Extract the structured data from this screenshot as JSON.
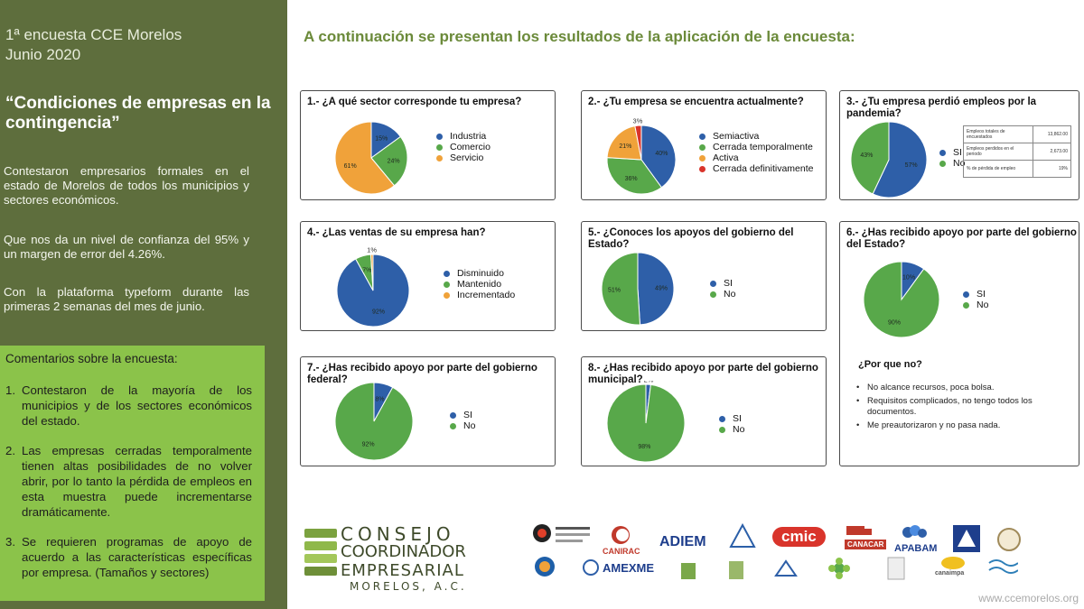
{
  "left": {
    "head_line1": "1ª encuesta CCE Morelos",
    "head_line2": "Junio 2020",
    "title": "“Condiciones de empresas en la contingencia”",
    "p1": "Contestaron empresarios formales en el estado de Morelos de todos los municipios y sectores económicos.",
    "p2": "Que nos da un nivel de confianza del 95% y un margen de error del 4.26%.",
    "p3": "Con la plataforma typeform durante las primeras 2 semanas del mes de junio.",
    "comments_title": "Comentarios sobre la encuesta:",
    "comments": [
      {
        "num": "1.",
        "text": "Contestaron de la mayoría de los municipios y de los sectores económicos del estado."
      },
      {
        "num": "2.",
        "text": "Las empresas cerradas temporalmente tienen altas posibilidades de no volver abrir, por lo tanto la pérdida de empleos en esta muestra puede incrementarse dramáticamente."
      },
      {
        "num": "3.",
        "text": "Se requieren programas de apoyo de acuerdo a las características específicas por empresa. (Tamaños y sectores)"
      }
    ]
  },
  "main_title": "A continuación se presentan los resultados de la aplicación de la encuesta:",
  "colors": {
    "panel": "#5e6e3d",
    "comments_bg": "#8bc34a",
    "title_green": "#6b8a3a",
    "blue": "#2e5fa8",
    "green": "#58a84a",
    "orange": "#f0a23a",
    "red": "#d9342b"
  },
  "chart_data": [
    {
      "id": "q1",
      "type": "pie",
      "title": "1.- ¿A qué sector corresponde tu empresa?",
      "labels": [
        "Industria",
        "Comercio",
        "Servicio"
      ],
      "values": [
        15,
        24,
        61
      ],
      "value_labels": [
        "15%",
        "24%",
        "61%"
      ]
    },
    {
      "id": "q2",
      "type": "pie",
      "title": "2.- ¿Tu empresa se encuentra actualmente?",
      "labels": [
        "Semiactiva",
        "Cerrada temporalmente",
        "Activa",
        "Cerrada definitivamente"
      ],
      "values": [
        40,
        36,
        21,
        3
      ],
      "value_labels": [
        "40%",
        "36%",
        "21%",
        "3%"
      ]
    },
    {
      "id": "q3",
      "type": "pie",
      "title": "3.- ¿Tu empresa perdió empleos por la pandemia?",
      "labels": [
        "SI",
        "No"
      ],
      "values": [
        57,
        43
      ],
      "value_labels": [
        "57%",
        "43%"
      ],
      "table": [
        {
          "label": "Empleos totales de encuestados",
          "value": "13,862.00"
        },
        {
          "label": "Empleos perdidos en el periodo",
          "value": "2,673.00"
        },
        {
          "label": "% de pérdida de empleo",
          "value": "19%"
        }
      ]
    },
    {
      "id": "q4",
      "type": "pie",
      "title": "4.- ¿Las ventas de su empresa han?",
      "labels": [
        "Disminuido",
        "Mantenido",
        "Incrementado"
      ],
      "values": [
        92,
        7,
        1
      ],
      "value_labels": [
        "92%",
        "7%",
        "1%"
      ]
    },
    {
      "id": "q5",
      "type": "pie",
      "title": "5.- ¿Conoces los apoyos del gobierno del Estado?",
      "labels": [
        "SI",
        "No"
      ],
      "values": [
        49,
        51
      ],
      "value_labels": [
        "49%",
        "51%"
      ]
    },
    {
      "id": "q6",
      "type": "pie",
      "title": "6.- ¿Has recibido apoyo por parte del gobierno del Estado?",
      "labels": [
        "SI",
        "No"
      ],
      "values": [
        10,
        90
      ],
      "value_labels": [
        "10%",
        "90%"
      ],
      "why_title": "¿Por que no?",
      "why_items": [
        "No alcance recursos, poca bolsa.",
        "Requisitos complicados, no tengo todos los documentos.",
        "Me preautorizaron y no pasa nada."
      ]
    },
    {
      "id": "q7",
      "type": "pie",
      "title": "7.- ¿Has recibido apoyo por parte del gobierno federal?",
      "labels": [
        "SI",
        "No"
      ],
      "values": [
        8,
        92
      ],
      "value_labels": [
        "8%",
        "92%"
      ]
    },
    {
      "id": "q8",
      "type": "pie",
      "title": "8.- ¿Has recibido apoyo por parte del gobierno municipal?",
      "labels": [
        "SI",
        "No"
      ],
      "values": [
        2,
        98
      ],
      "value_labels": [
        "2%",
        "98%"
      ]
    }
  ],
  "logo": {
    "line1": "CONSEJO",
    "line2": "COORDINADOR",
    "line3": "EMPRESARIAL",
    "line4": "MORELOS, A.C."
  },
  "partners": [
    "CANIRAC",
    "ADIEM",
    "cmic",
    "CANACAR",
    "APABAM",
    "AMEXME",
    "canaimpa"
  ],
  "footer_url": "www.ccemorelos.org"
}
